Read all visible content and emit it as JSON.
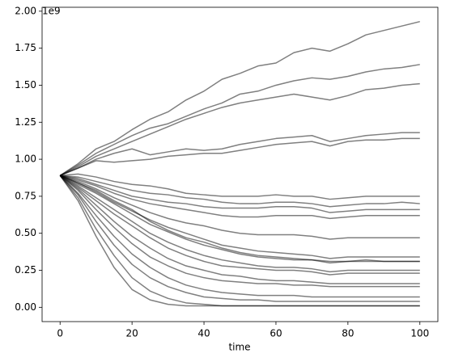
{
  "chart_data": {
    "type": "line",
    "xlabel": "time",
    "offset_text": "1e9",
    "color": "#000000",
    "alpha": 0.5,
    "x": [
      0,
      5,
      10,
      15,
      20,
      25,
      30,
      35,
      40,
      45,
      50,
      55,
      60,
      65,
      70,
      75,
      80,
      85,
      90,
      95,
      100
    ],
    "series": [
      {
        "values": [
          0.89,
          0.97,
          1.07,
          1.12,
          1.2,
          1.27,
          1.32,
          1.4,
          1.46,
          1.54,
          1.58,
          1.63,
          1.65,
          1.72,
          1.75,
          1.73,
          1.78,
          1.84,
          1.87,
          1.9,
          1.93
        ]
      },
      {
        "values": [
          0.89,
          0.96,
          1.04,
          1.1,
          1.16,
          1.21,
          1.24,
          1.29,
          1.34,
          1.38,
          1.44,
          1.46,
          1.5,
          1.53,
          1.55,
          1.54,
          1.56,
          1.59,
          1.61,
          1.62,
          1.64
        ]
      },
      {
        "values": [
          0.89,
          0.95,
          1.02,
          1.07,
          1.12,
          1.17,
          1.22,
          1.27,
          1.31,
          1.35,
          1.38,
          1.4,
          1.42,
          1.44,
          1.42,
          1.4,
          1.43,
          1.47,
          1.48,
          1.5,
          1.51
        ]
      },
      {
        "values": [
          0.89,
          0.94,
          1.0,
          1.04,
          1.07,
          1.03,
          1.05,
          1.07,
          1.06,
          1.07,
          1.1,
          1.12,
          1.14,
          1.15,
          1.16,
          1.12,
          1.14,
          1.16,
          1.17,
          1.18,
          1.18
        ]
      },
      {
        "values": [
          0.89,
          0.94,
          0.99,
          0.98,
          0.99,
          1.0,
          1.02,
          1.03,
          1.04,
          1.04,
          1.06,
          1.08,
          1.1,
          1.11,
          1.12,
          1.09,
          1.12,
          1.13,
          1.13,
          1.14,
          1.14
        ]
      },
      {
        "values": [
          0.89,
          0.9,
          0.88,
          0.85,
          0.83,
          0.82,
          0.8,
          0.77,
          0.76,
          0.75,
          0.75,
          0.75,
          0.76,
          0.75,
          0.75,
          0.73,
          0.74,
          0.75,
          0.75,
          0.75,
          0.75
        ]
      },
      {
        "values": [
          0.89,
          0.88,
          0.85,
          0.82,
          0.79,
          0.77,
          0.76,
          0.74,
          0.73,
          0.71,
          0.7,
          0.7,
          0.71,
          0.71,
          0.7,
          0.68,
          0.69,
          0.7,
          0.7,
          0.71,
          0.7
        ]
      },
      {
        "values": [
          0.89,
          0.87,
          0.83,
          0.79,
          0.75,
          0.73,
          0.71,
          0.7,
          0.68,
          0.67,
          0.67,
          0.67,
          0.68,
          0.68,
          0.67,
          0.64,
          0.65,
          0.66,
          0.66,
          0.66,
          0.66
        ]
      },
      {
        "values": [
          0.89,
          0.86,
          0.82,
          0.77,
          0.73,
          0.7,
          0.68,
          0.66,
          0.64,
          0.62,
          0.61,
          0.61,
          0.62,
          0.62,
          0.62,
          0.6,
          0.61,
          0.62,
          0.62,
          0.62,
          0.62
        ]
      },
      {
        "values": [
          0.89,
          0.85,
          0.8,
          0.74,
          0.69,
          0.64,
          0.6,
          0.57,
          0.55,
          0.52,
          0.5,
          0.49,
          0.49,
          0.49,
          0.48,
          0.46,
          0.47,
          0.47,
          0.47,
          0.47,
          0.47
        ]
      },
      {
        "values": [
          0.89,
          0.84,
          0.78,
          0.71,
          0.65,
          0.59,
          0.54,
          0.5,
          0.46,
          0.42,
          0.4,
          0.38,
          0.37,
          0.36,
          0.35,
          0.33,
          0.34,
          0.34,
          0.34,
          0.34,
          0.34
        ]
      },
      {
        "values": [
          0.89,
          0.83,
          0.77,
          0.7,
          0.63,
          0.56,
          0.51,
          0.46,
          0.42,
          0.39,
          0.36,
          0.34,
          0.33,
          0.32,
          0.32,
          0.3,
          0.31,
          0.31,
          0.31,
          0.31,
          0.31
        ]
      },
      {
        "values": [
          0.89,
          0.84,
          0.79,
          0.72,
          0.66,
          0.58,
          0.52,
          0.47,
          0.44,
          0.4,
          0.37,
          0.35,
          0.34,
          0.33,
          0.32,
          0.31,
          0.31,
          0.32,
          0.31,
          0.31,
          0.31
        ]
      },
      {
        "values": [
          0.89,
          0.82,
          0.74,
          0.66,
          0.58,
          0.5,
          0.44,
          0.39,
          0.35,
          0.32,
          0.3,
          0.28,
          0.27,
          0.27,
          0.26,
          0.24,
          0.25,
          0.25,
          0.25,
          0.25,
          0.25
        ]
      },
      {
        "values": [
          0.89,
          0.81,
          0.72,
          0.63,
          0.55,
          0.47,
          0.4,
          0.35,
          0.31,
          0.28,
          0.27,
          0.26,
          0.25,
          0.25,
          0.24,
          0.22,
          0.23,
          0.23,
          0.23,
          0.23,
          0.23
        ]
      },
      {
        "values": [
          0.89,
          0.8,
          0.69,
          0.58,
          0.48,
          0.4,
          0.33,
          0.28,
          0.25,
          0.22,
          0.21,
          0.19,
          0.18,
          0.18,
          0.17,
          0.16,
          0.16,
          0.16,
          0.16,
          0.16,
          0.16
        ]
      },
      {
        "values": [
          0.89,
          0.79,
          0.66,
          0.54,
          0.43,
          0.34,
          0.28,
          0.23,
          0.2,
          0.18,
          0.17,
          0.16,
          0.16,
          0.15,
          0.15,
          0.14,
          0.14,
          0.14,
          0.14,
          0.14,
          0.14
        ]
      },
      {
        "values": [
          0.89,
          0.77,
          0.62,
          0.48,
          0.36,
          0.27,
          0.2,
          0.15,
          0.12,
          0.1,
          0.09,
          0.08,
          0.08,
          0.08,
          0.07,
          0.07,
          0.07,
          0.07,
          0.07,
          0.07,
          0.07
        ]
      },
      {
        "values": [
          0.89,
          0.76,
          0.58,
          0.42,
          0.29,
          0.2,
          0.14,
          0.1,
          0.07,
          0.06,
          0.05,
          0.05,
          0.04,
          0.04,
          0.04,
          0.04,
          0.04,
          0.04,
          0.04,
          0.04,
          0.04
        ]
      },
      {
        "values": [
          0.89,
          0.74,
          0.53,
          0.35,
          0.2,
          0.11,
          0.06,
          0.03,
          0.02,
          0.01,
          0.01,
          0.01,
          0.01,
          0.01,
          0.01,
          0.01,
          0.01,
          0.01,
          0.01,
          0.01,
          0.01
        ]
      },
      {
        "values": [
          0.89,
          0.72,
          0.48,
          0.27,
          0.12,
          0.05,
          0.02,
          0.01,
          0.01,
          0.01,
          0.01,
          0.01,
          0.01,
          0.01,
          0.01,
          0.01,
          0.01,
          0.01,
          0.01,
          0.01,
          0.01
        ]
      }
    ],
    "xlim": [
      -5,
      105
    ],
    "xticks": [
      0,
      20,
      40,
      60,
      80,
      100
    ],
    "ylim": [
      -0.0965,
      2.0265
    ],
    "yticks": [
      {
        "value": 0,
        "label": "0.00"
      },
      {
        "value": 0.25,
        "label": "0.25"
      },
      {
        "value": 0.5,
        "label": "0.50"
      },
      {
        "value": 0.75,
        "label": "0.75"
      },
      {
        "value": 1,
        "label": "1.00"
      },
      {
        "value": 1.25,
        "label": "1.25"
      },
      {
        "value": 1.5,
        "label": "1.50"
      },
      {
        "value": 1.75,
        "label": "1.75"
      },
      {
        "value": 2,
        "label": "2.00"
      }
    ],
    "grid": false
  }
}
